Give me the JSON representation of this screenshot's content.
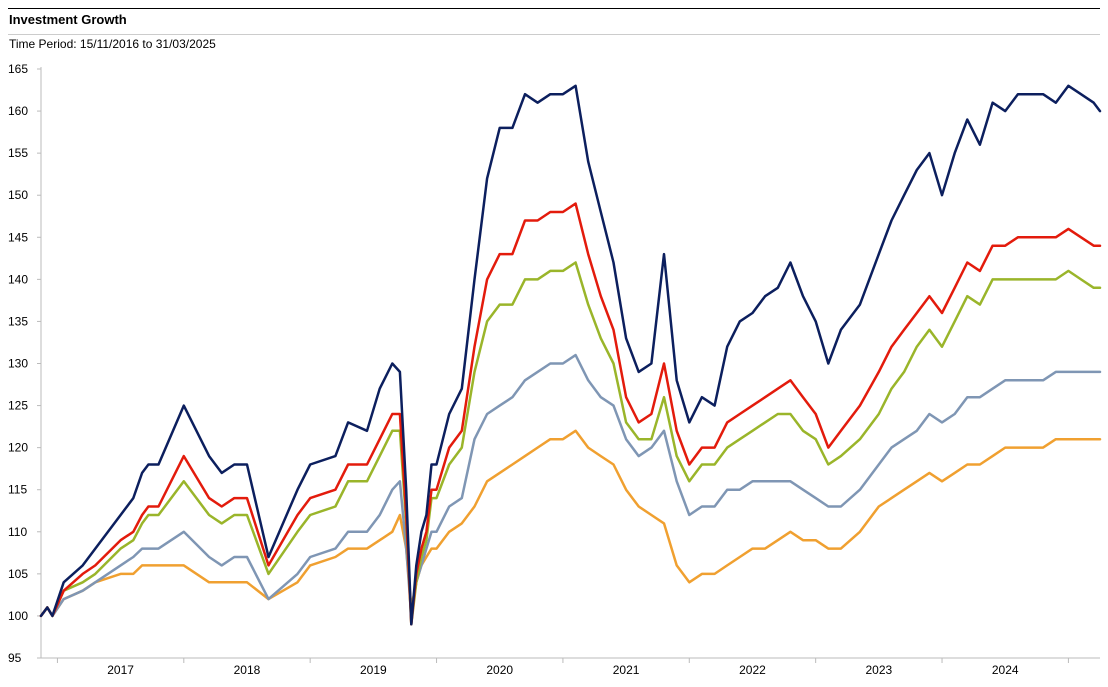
{
  "title": "Investment Growth",
  "subtitle": "Time Period: 15/11/2016 to 31/03/2025",
  "chart_data": {
    "type": "line",
    "title": "Investment Growth",
    "subtitle": "Time Period: 15/11/2016 to 31/03/2025",
    "xlabel": "",
    "ylabel": "",
    "xlim": [
      2016.87,
      2025.25
    ],
    "ylim": [
      95,
      165
    ],
    "y_ticks": [
      95,
      100,
      105,
      110,
      115,
      120,
      125,
      130,
      135,
      140,
      145,
      150,
      155,
      160,
      165
    ],
    "x_ticks": [
      {
        "label": "2017",
        "x": 2017.5
      },
      {
        "label": "2018",
        "x": 2018.5
      },
      {
        "label": "2019",
        "x": 2019.5
      },
      {
        "label": "2020",
        "x": 2020.5
      },
      {
        "label": "2021",
        "x": 2021.5
      },
      {
        "label": "2022",
        "x": 2022.5
      },
      {
        "label": "2023",
        "x": 2023.5
      },
      {
        "label": "2024",
        "x": 2024.5
      }
    ],
    "grid": false,
    "legend": "none",
    "series": [
      {
        "color": "#0c1f5e",
        "x": [
          2016.87,
          2016.92,
          2016.96,
          2017.05,
          2017.2,
          2017.3,
          2017.5,
          2017.6,
          2017.67,
          2017.72,
          2017.8,
          2018.0,
          2018.2,
          2018.3,
          2018.4,
          2018.5,
          2018.67,
          2018.9,
          2019.0,
          2019.2,
          2019.3,
          2019.45,
          2019.55,
          2019.65,
          2019.71,
          2019.76,
          2019.8,
          2019.84,
          2019.88,
          2019.92,
          2019.96,
          2020.0,
          2020.1,
          2020.2,
          2020.3,
          2020.4,
          2020.5,
          2020.6,
          2020.7,
          2020.8,
          2020.9,
          2021.0,
          2021.1,
          2021.2,
          2021.3,
          2021.4,
          2021.5,
          2021.6,
          2021.7,
          2021.8,
          2021.9,
          2022.0,
          2022.1,
          2022.2,
          2022.3,
          2022.4,
          2022.5,
          2022.6,
          2022.7,
          2022.8,
          2022.9,
          2023.0,
          2023.1,
          2023.2,
          2023.35,
          2023.5,
          2023.6,
          2023.7,
          2023.8,
          2023.9,
          2024.0,
          2024.1,
          2024.2,
          2024.3,
          2024.4,
          2024.5,
          2024.6,
          2024.7,
          2024.8,
          2024.9,
          2025.0,
          2025.1,
          2025.2,
          2025.25
        ],
        "values": [
          100,
          101,
          100,
          104,
          106,
          108,
          112,
          114,
          117,
          118,
          118,
          125,
          119,
          117,
          118,
          118,
          107,
          115,
          118,
          119,
          123,
          122,
          127,
          130,
          129,
          115,
          99,
          106,
          110,
          112,
          118,
          118,
          124,
          127,
          140,
          152,
          158,
          158,
          162,
          161,
          162,
          162,
          163,
          154,
          148,
          142,
          133,
          129,
          130,
          143,
          128,
          123,
          126,
          125,
          132,
          135,
          136,
          138,
          139,
          142,
          138,
          135,
          130,
          134,
          137,
          143,
          147,
          150,
          153,
          155,
          150,
          155,
          159,
          156,
          161,
          160,
          162,
          162,
          162,
          161,
          163,
          162,
          161,
          160
        ]
      },
      {
        "color": "#e31b0c",
        "x": [
          2016.87,
          2016.92,
          2016.96,
          2017.05,
          2017.2,
          2017.3,
          2017.5,
          2017.6,
          2017.67,
          2017.72,
          2017.8,
          2018.0,
          2018.2,
          2018.3,
          2018.4,
          2018.5,
          2018.67,
          2018.9,
          2019.0,
          2019.2,
          2019.3,
          2019.45,
          2019.55,
          2019.65,
          2019.71,
          2019.76,
          2019.8,
          2019.84,
          2019.88,
          2019.92,
          2019.96,
          2020.0,
          2020.1,
          2020.2,
          2020.3,
          2020.4,
          2020.5,
          2020.6,
          2020.7,
          2020.8,
          2020.9,
          2021.0,
          2021.1,
          2021.2,
          2021.3,
          2021.4,
          2021.5,
          2021.6,
          2021.7,
          2021.8,
          2021.9,
          2022.0,
          2022.1,
          2022.2,
          2022.3,
          2022.4,
          2022.5,
          2022.6,
          2022.7,
          2022.8,
          2022.9,
          2023.0,
          2023.1,
          2023.2,
          2023.35,
          2023.5,
          2023.6,
          2023.7,
          2023.8,
          2023.9,
          2024.0,
          2024.1,
          2024.2,
          2024.3,
          2024.4,
          2024.5,
          2024.6,
          2024.7,
          2024.8,
          2024.9,
          2025.0,
          2025.1,
          2025.2,
          2025.25
        ],
        "values": [
          100,
          101,
          100,
          103,
          105,
          106,
          109,
          110,
          112,
          113,
          113,
          119,
          114,
          113,
          114,
          114,
          106,
          112,
          114,
          115,
          118,
          118,
          121,
          124,
          124,
          112,
          99,
          105,
          108,
          110,
          115,
          115,
          120,
          122,
          132,
          140,
          143,
          143,
          147,
          147,
          148,
          148,
          149,
          143,
          138,
          134,
          126,
          123,
          124,
          130,
          122,
          118,
          120,
          120,
          123,
          124,
          125,
          126,
          127,
          128,
          126,
          124,
          120,
          122,
          125,
          129,
          132,
          134,
          136,
          138,
          136,
          139,
          142,
          141,
          144,
          144,
          145,
          145,
          145,
          145,
          146,
          145,
          144,
          144
        ]
      },
      {
        "color": "#9ab52a",
        "x": [
          2016.87,
          2016.92,
          2016.96,
          2017.05,
          2017.2,
          2017.3,
          2017.5,
          2017.6,
          2017.67,
          2017.72,
          2017.8,
          2018.0,
          2018.2,
          2018.3,
          2018.4,
          2018.5,
          2018.67,
          2018.9,
          2019.0,
          2019.2,
          2019.3,
          2019.45,
          2019.55,
          2019.65,
          2019.71,
          2019.76,
          2019.8,
          2019.84,
          2019.88,
          2019.92,
          2019.96,
          2020.0,
          2020.1,
          2020.2,
          2020.3,
          2020.4,
          2020.5,
          2020.6,
          2020.7,
          2020.8,
          2020.9,
          2021.0,
          2021.1,
          2021.2,
          2021.3,
          2021.4,
          2021.5,
          2021.6,
          2021.7,
          2021.8,
          2021.9,
          2022.0,
          2022.1,
          2022.2,
          2022.3,
          2022.4,
          2022.5,
          2022.6,
          2022.7,
          2022.8,
          2022.9,
          2023.0,
          2023.1,
          2023.2,
          2023.35,
          2023.5,
          2023.6,
          2023.7,
          2023.8,
          2023.9,
          2024.0,
          2024.1,
          2024.2,
          2024.3,
          2024.4,
          2024.5,
          2024.6,
          2024.7,
          2024.8,
          2024.9,
          2025.0,
          2025.1,
          2025.2,
          2025.25
        ],
        "values": [
          100,
          101,
          100,
          103,
          104,
          105,
          108,
          109,
          111,
          112,
          112,
          116,
          112,
          111,
          112,
          112,
          105,
          110,
          112,
          113,
          116,
          116,
          119,
          122,
          122,
          111,
          99,
          104,
          107,
          109,
          114,
          114,
          118,
          120,
          129,
          135,
          137,
          137,
          140,
          140,
          141,
          141,
          142,
          137,
          133,
          130,
          123,
          121,
          121,
          126,
          119,
          116,
          118,
          118,
          120,
          121,
          122,
          123,
          124,
          124,
          122,
          121,
          118,
          119,
          121,
          124,
          127,
          129,
          132,
          134,
          132,
          135,
          138,
          137,
          140,
          140,
          140,
          140,
          140,
          140,
          141,
          140,
          139,
          139
        ]
      },
      {
        "color": "#7f96b4",
        "x": [
          2016.87,
          2016.92,
          2016.96,
          2017.05,
          2017.2,
          2017.3,
          2017.5,
          2017.6,
          2017.67,
          2017.72,
          2017.8,
          2018.0,
          2018.2,
          2018.3,
          2018.4,
          2018.5,
          2018.67,
          2018.9,
          2019.0,
          2019.2,
          2019.3,
          2019.45,
          2019.55,
          2019.65,
          2019.71,
          2019.76,
          2019.8,
          2019.84,
          2019.88,
          2019.92,
          2019.96,
          2020.0,
          2020.1,
          2020.2,
          2020.3,
          2020.4,
          2020.5,
          2020.6,
          2020.7,
          2020.8,
          2020.9,
          2021.0,
          2021.1,
          2021.2,
          2021.3,
          2021.4,
          2021.5,
          2021.6,
          2021.7,
          2021.8,
          2021.9,
          2022.0,
          2022.1,
          2022.2,
          2022.3,
          2022.4,
          2022.5,
          2022.6,
          2022.7,
          2022.8,
          2022.9,
          2023.0,
          2023.1,
          2023.2,
          2023.35,
          2023.5,
          2023.6,
          2023.7,
          2023.8,
          2023.9,
          2024.0,
          2024.1,
          2024.2,
          2024.3,
          2024.4,
          2024.5,
          2024.6,
          2024.7,
          2024.8,
          2024.9,
          2025.0,
          2025.1,
          2025.2,
          2025.25
        ],
        "values": [
          100,
          101,
          100,
          102,
          103,
          104,
          106,
          107,
          108,
          108,
          108,
          110,
          107,
          106,
          107,
          107,
          102,
          105,
          107,
          108,
          110,
          110,
          112,
          115,
          116,
          108,
          100,
          104,
          106,
          108,
          110,
          110,
          113,
          114,
          121,
          124,
          125,
          126,
          128,
          129,
          130,
          130,
          131,
          128,
          126,
          125,
          121,
          119,
          120,
          122,
          116,
          112,
          113,
          113,
          115,
          115,
          116,
          116,
          116,
          116,
          115,
          114,
          113,
          113,
          115,
          118,
          120,
          121,
          122,
          124,
          123,
          124,
          126,
          126,
          127,
          128,
          128,
          128,
          128,
          129,
          129,
          129,
          129,
          129
        ]
      },
      {
        "color": "#f0a030",
        "x": [
          2016.87,
          2016.92,
          2016.96,
          2017.05,
          2017.2,
          2017.3,
          2017.5,
          2017.6,
          2017.67,
          2017.72,
          2017.8,
          2018.0,
          2018.2,
          2018.3,
          2018.4,
          2018.5,
          2018.67,
          2018.9,
          2019.0,
          2019.2,
          2019.3,
          2019.45,
          2019.55,
          2019.65,
          2019.71,
          2019.76,
          2019.8,
          2019.84,
          2019.88,
          2019.92,
          2019.96,
          2020.0,
          2020.1,
          2020.2,
          2020.3,
          2020.4,
          2020.5,
          2020.6,
          2020.7,
          2020.8,
          2020.9,
          2021.0,
          2021.1,
          2021.2,
          2021.3,
          2021.4,
          2021.5,
          2021.6,
          2021.7,
          2021.8,
          2021.9,
          2022.0,
          2022.1,
          2022.2,
          2022.3,
          2022.4,
          2022.5,
          2022.6,
          2022.7,
          2022.8,
          2022.9,
          2023.0,
          2023.1,
          2023.2,
          2023.35,
          2023.5,
          2023.6,
          2023.7,
          2023.8,
          2023.9,
          2024.0,
          2024.1,
          2024.2,
          2024.3,
          2024.4,
          2024.5,
          2024.6,
          2024.7,
          2024.8,
          2024.9,
          2025.0,
          2025.1,
          2025.2,
          2025.25
        ],
        "values": [
          100,
          101,
          100,
          102,
          103,
          104,
          105,
          105,
          106,
          106,
          106,
          106,
          104,
          104,
          104,
          104,
          102,
          104,
          106,
          107,
          108,
          108,
          109,
          110,
          112,
          108,
          101,
          104,
          106,
          107,
          108,
          108,
          110,
          111,
          113,
          116,
          117,
          118,
          119,
          120,
          121,
          121,
          122,
          120,
          119,
          118,
          115,
          113,
          112,
          111,
          106,
          104,
          105,
          105,
          106,
          107,
          108,
          108,
          109,
          110,
          109,
          109,
          108,
          108,
          110,
          113,
          114,
          115,
          116,
          117,
          116,
          117,
          118,
          118,
          119,
          120,
          120,
          120,
          120,
          121,
          121,
          121,
          121,
          121
        ]
      }
    ]
  }
}
